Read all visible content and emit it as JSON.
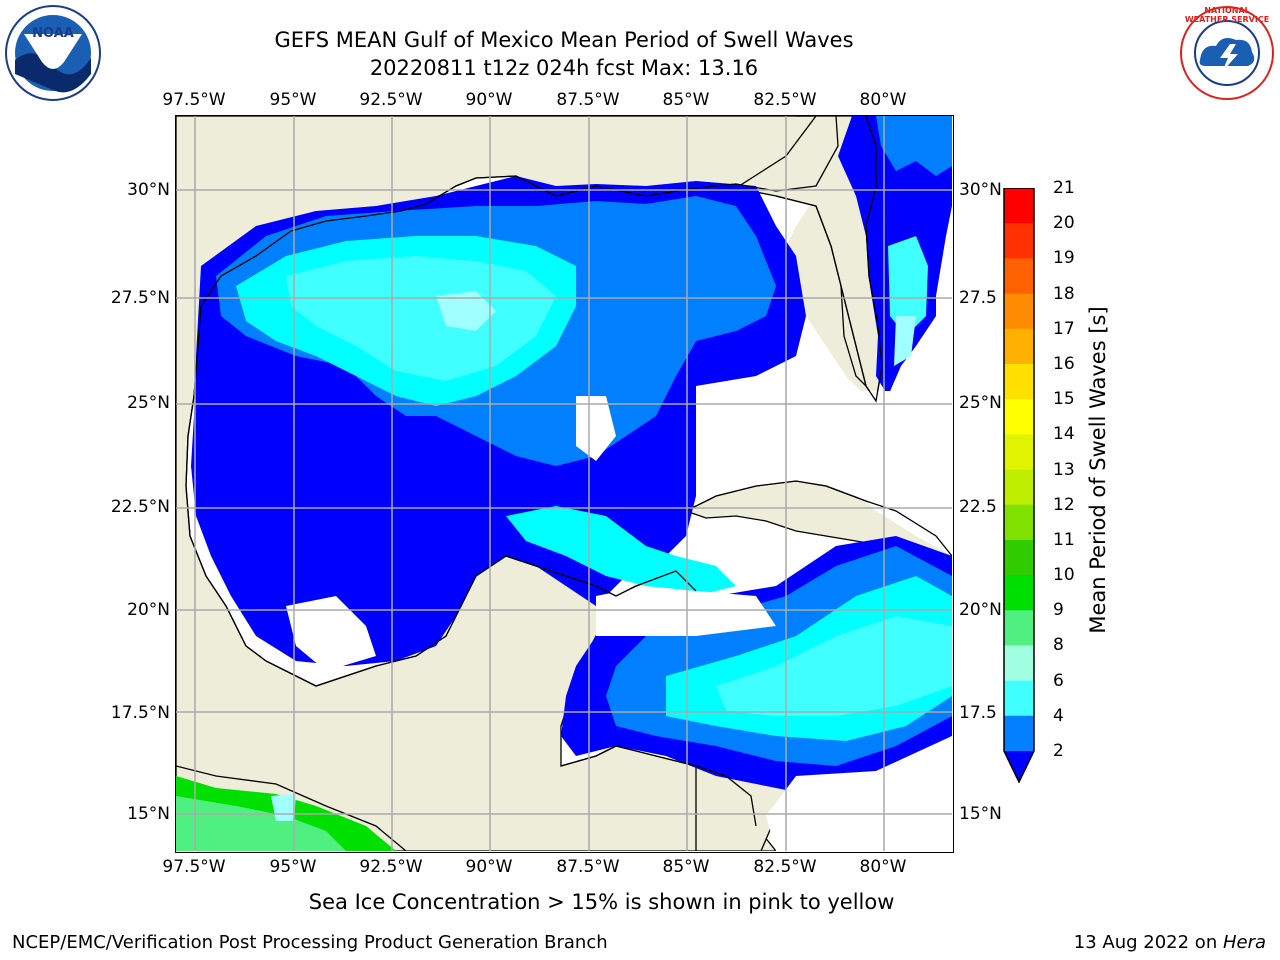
{
  "title_line1": "GEFS MEAN Gulf of Mexico Mean Period of Swell Waves",
  "title_line2": "20220811 t12z 024h fcst   Max: 13.16",
  "lon_ticks": [
    "97.5°W",
    "95°W",
    "92.5°W",
    "90°W",
    "87.5°W",
    "85°W",
    "82.5°W",
    "80°W"
  ],
  "lat_ticks_left": [
    "30°N",
    "27.5°N",
    "25°N",
    "22.5°N",
    "20°N",
    "17.5°N",
    "15°N"
  ],
  "lat_ticks_right": [
    "30°N",
    "27.5",
    "25°N",
    "22.5",
    "20°N",
    "17.5",
    "15°N"
  ],
  "colorbar": {
    "label": "Mean Period of Swell Waves [s]",
    "ticks": [
      "21",
      "20",
      "19",
      "18",
      "17",
      "16",
      "15",
      "14",
      "13",
      "12",
      "11",
      "10",
      "9",
      "8",
      "6",
      "4",
      "2"
    ],
    "colors": [
      "#ff0000",
      "#ff3000",
      "#ff6000",
      "#ff8c00",
      "#ffb000",
      "#ffe000",
      "#ffff00",
      "#e0f400",
      "#c0ee00",
      "#80e000",
      "#30cc00",
      "#00e000",
      "#50f080",
      "#a0ffe0",
      "#40ffff",
      "#00f0ff",
      "#0080ff"
    ],
    "arrow_color": "#0000ff"
  },
  "palette": {
    "land": "#eeedda",
    "deep_blue": "#0000ff",
    "mid_blue": "#0080ff",
    "cyan": "#00ffff",
    "light_cyan": "#40ffff",
    "pale_cyan": "#a0ffff",
    "green": "#00e000",
    "light_green": "#50f080"
  },
  "footer_note": "Sea Ice Concentration > 15% is shown in pink to yellow",
  "credit_left": "NCEP/EMC/Verification Post Processing Product Generation Branch",
  "credit_right_date": "13 Aug 2022 on ",
  "credit_right_host": "Hera",
  "logo_left": "NOAA",
  "logo_right": "NATIONAL WEATHER SERVICE"
}
